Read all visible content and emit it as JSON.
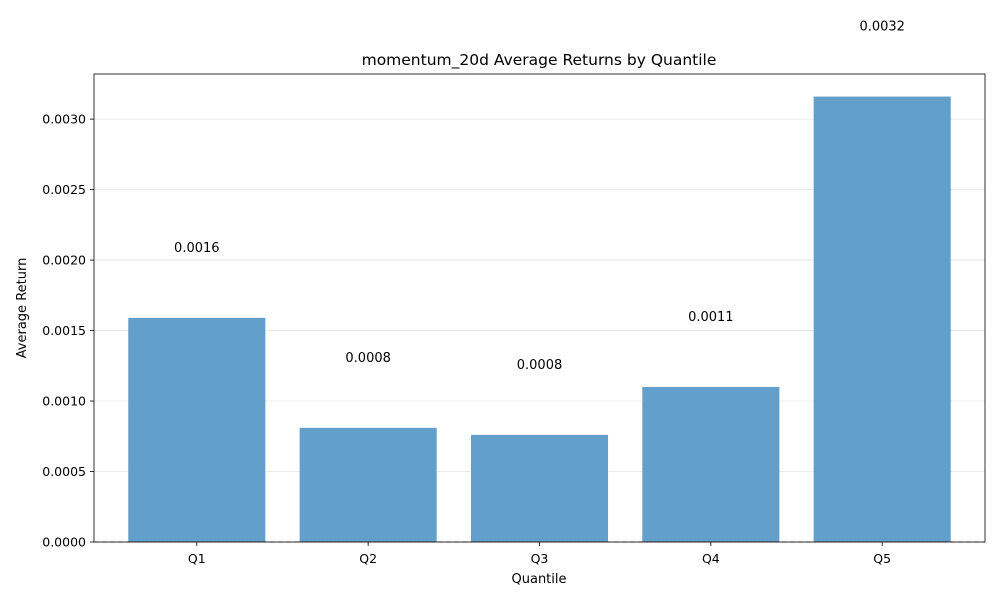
{
  "chart_data": {
    "type": "bar",
    "title": "momentum_20d Average Returns by Quantile",
    "xlabel": "Quantile",
    "ylabel": "Average Return",
    "categories": [
      "Q1",
      "Q2",
      "Q3",
      "Q4",
      "Q5"
    ],
    "values": [
      0.00159,
      0.00081,
      0.00076,
      0.0011,
      0.00316
    ],
    "data_labels": [
      "0.0016",
      "0.0008",
      "0.0008",
      "0.0011",
      "0.0032"
    ],
    "label_offset": 0.0005,
    "ylim": [
      0,
      0.00332
    ],
    "yticks": [
      0,
      0.0005,
      0.001,
      0.0015,
      0.002,
      0.0025,
      0.003
    ],
    "ytick_labels": [
      "0.0000",
      "0.0005",
      "0.0010",
      "0.0015",
      "0.0020",
      "0.0025",
      "0.0030"
    ],
    "grid": "y",
    "reference_line": 0,
    "colors": {
      "bar": "#629fca",
      "grid": "#e6e6e6",
      "reference_line": "#d9534f",
      "axis": "#000000"
    }
  }
}
